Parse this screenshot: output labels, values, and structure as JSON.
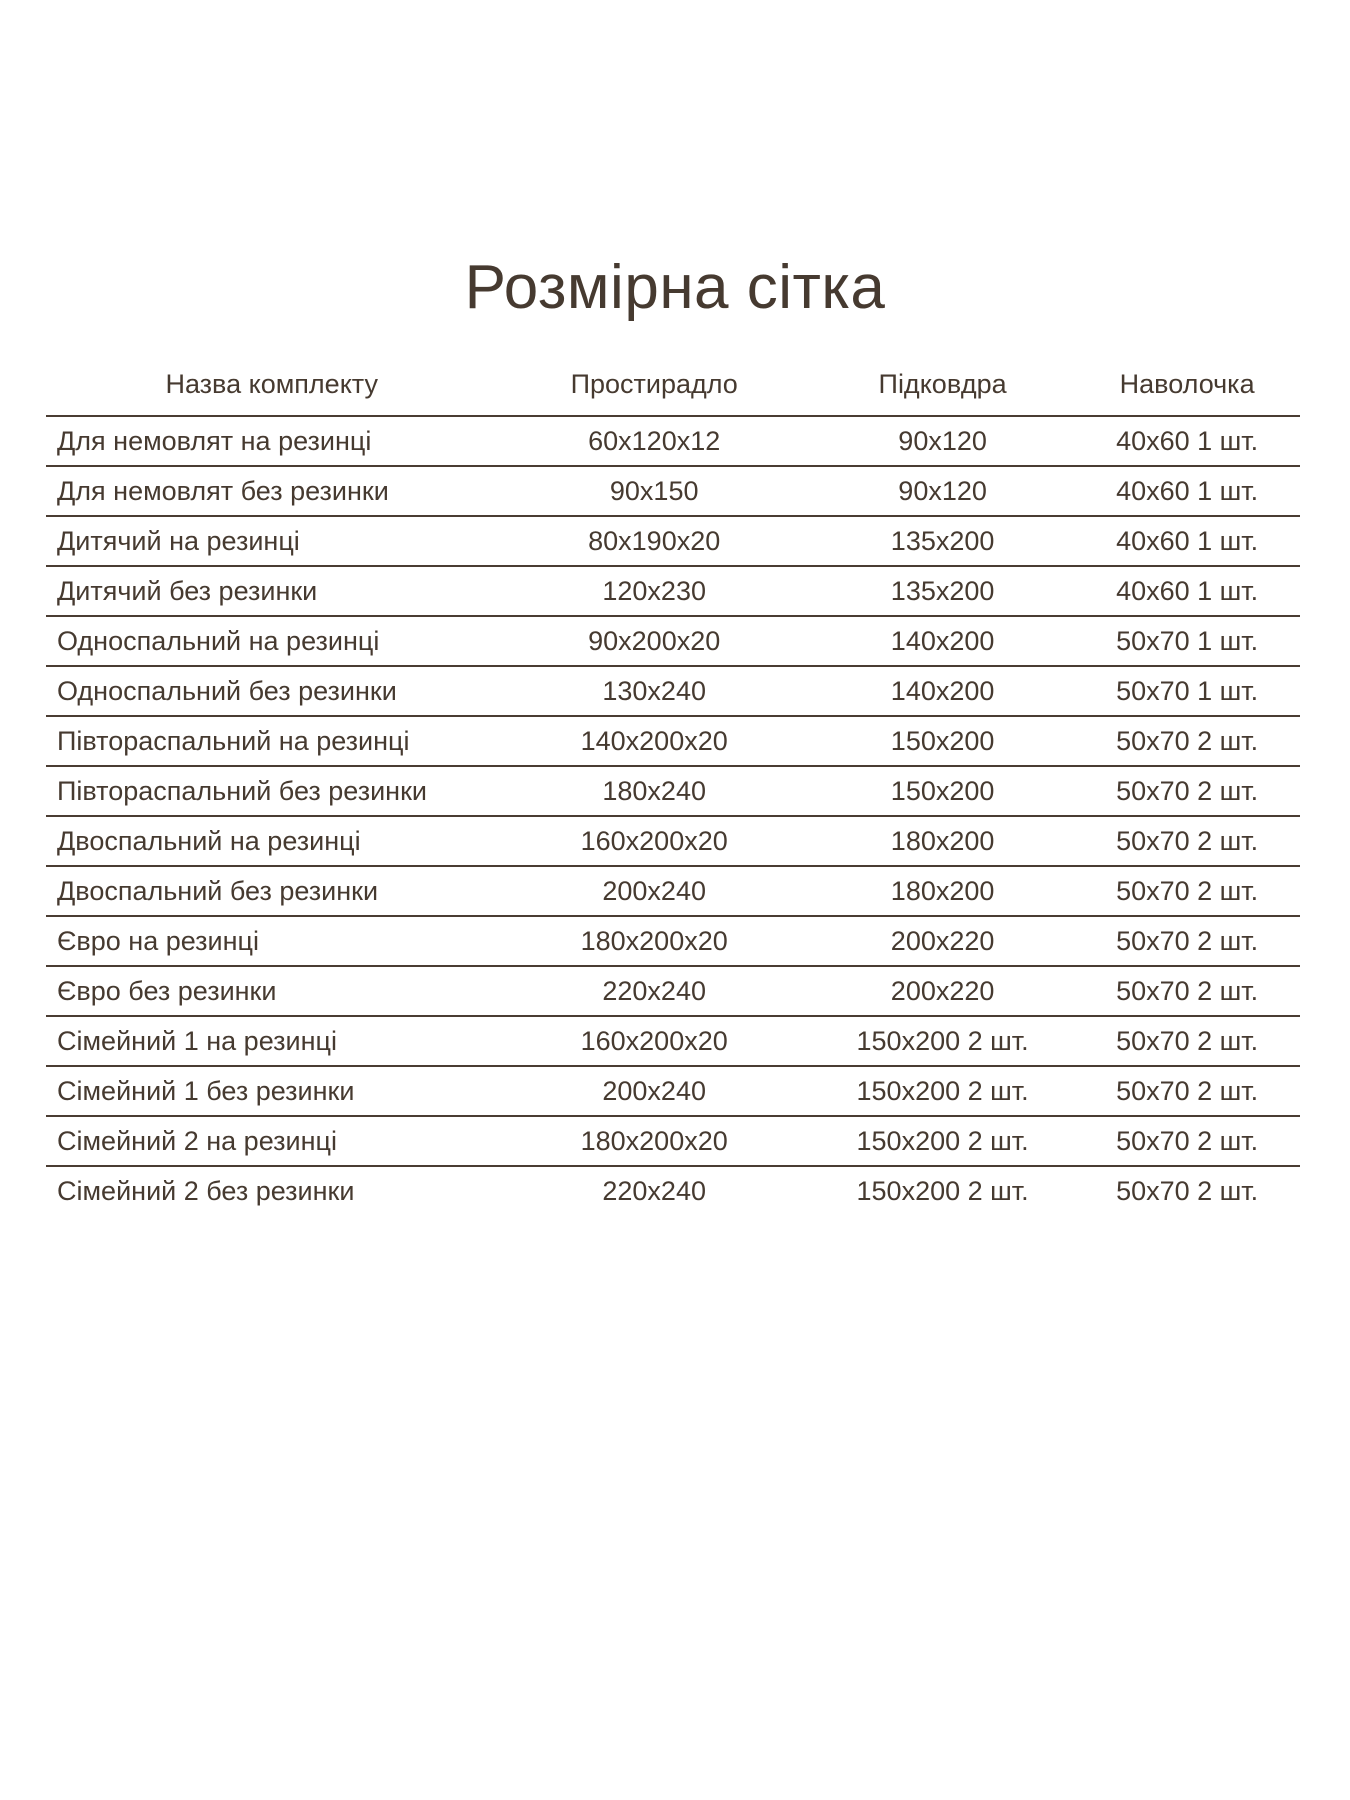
{
  "title": "Розмірна сітка",
  "colors": {
    "text": "#463a30",
    "line": "#4a3c32",
    "background": "#ffffff"
  },
  "table": {
    "headers": [
      "Назва комплекту",
      "Простирадло",
      "Підковдра",
      "Наволочка"
    ],
    "rows": [
      {
        "name": "Для немовлят на резинці",
        "sheet": "60х120х12",
        "duvet": "90х120",
        "pillowcase": "40х60 1 шт."
      },
      {
        "name": "Для немовлят без резинки",
        "sheet": "90х150",
        "duvet": "90х120",
        "pillowcase": "40х60 1 шт."
      },
      {
        "name": "Дитячий на резинці",
        "sheet": "80х190х20",
        "duvet": "135х200",
        "pillowcase": "40х60 1 шт."
      },
      {
        "name": "Дитячий без резинки",
        "sheet": "120х230",
        "duvet": "135х200",
        "pillowcase": "40х60 1 шт."
      },
      {
        "name": "Односпальний на резинці",
        "sheet": "90х200х20",
        "duvet": "140х200",
        "pillowcase": "50х70 1 шт."
      },
      {
        "name": "Односпальний без резинки",
        "sheet": "130х240",
        "duvet": "140х200",
        "pillowcase": "50х70 1 шт."
      },
      {
        "name": "Півтораспальний на резинці",
        "sheet": "140х200х20",
        "duvet": "150х200",
        "pillowcase": "50х70 2 шт."
      },
      {
        "name": "Півтораспальний без резинки",
        "sheet": "180х240",
        "duvet": "150х200",
        "pillowcase": "50х70 2 шт."
      },
      {
        "name": "Двоспальний на резинці",
        "sheet": "160х200х20",
        "duvet": "180х200",
        "pillowcase": "50х70 2 шт."
      },
      {
        "name": "Двоспальний без резинки",
        "sheet": "200х240",
        "duvet": "180х200",
        "pillowcase": "50х70 2 шт."
      },
      {
        "name": "Євро на резинці",
        "sheet": "180х200х20",
        "duvet": "200х220",
        "pillowcase": "50х70 2 шт."
      },
      {
        "name": "Євро без резинки",
        "sheet": "220х240",
        "duvet": "200х220",
        "pillowcase": "50х70 2 шт."
      },
      {
        "name": "Сімейний 1 на резинці",
        "sheet": "160х200х20",
        "duvet": "150х200 2 шт.",
        "pillowcase": "50х70 2 шт."
      },
      {
        "name": "Сімейний 1 без резинки",
        "sheet": "200х240",
        "duvet": "150х200 2 шт.",
        "pillowcase": "50х70 2 шт."
      },
      {
        "name": "Сімейний 2 на резинці",
        "sheet": "180х200х20",
        "duvet": "150х200 2 шт.",
        "pillowcase": "50х70 2 шт."
      },
      {
        "name": "Сімейний 2 без резинки",
        "sheet": "220х240",
        "duvet": "150х200 2 шт.",
        "pillowcase": "50х70 2 шт."
      }
    ]
  }
}
